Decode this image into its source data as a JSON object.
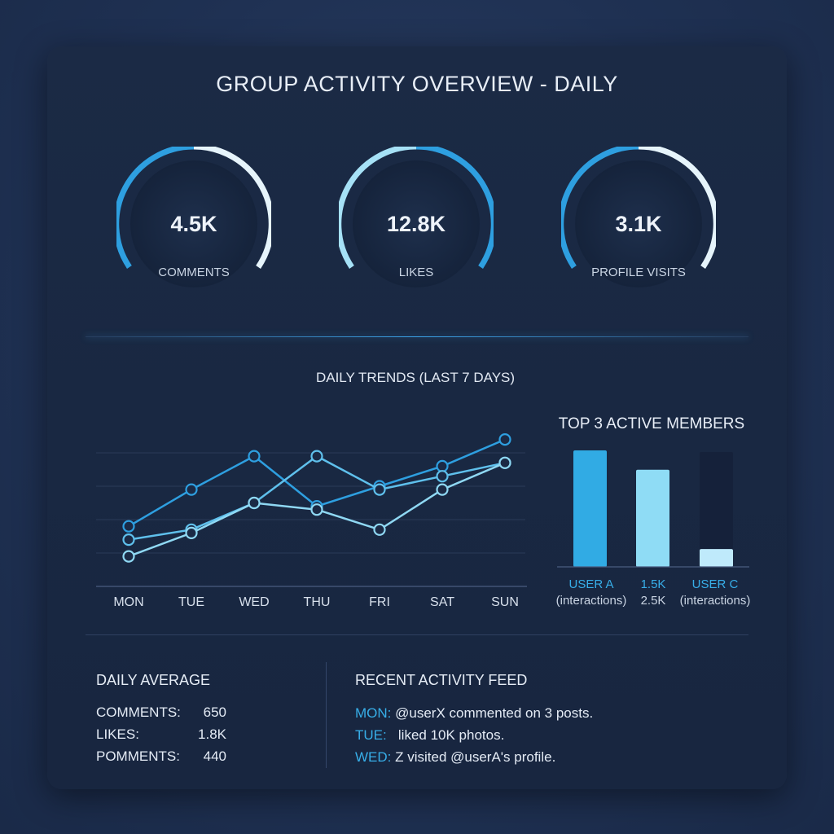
{
  "title": "GROUP ACTIVITY OVERVIEW - DAILY",
  "gauges": [
    {
      "value": "4.5K",
      "label": "COMMENTS"
    },
    {
      "value": "12.8K",
      "label": "LIKES"
    },
    {
      "value": "3.1K",
      "label": "PROFILE VISITS"
    }
  ],
  "chart_data": [
    {
      "type": "line",
      "title": "DAILY TRENDS (LAST 7 DAYS)",
      "categories": [
        "MON",
        "TUE",
        "WED",
        "THU",
        "FRI",
        "SAT",
        "SUN"
      ],
      "ylim": [
        0,
        5
      ],
      "grid": true,
      "series": [
        {
          "color": "#2e9fe0",
          "values": [
            1.8,
            2.9,
            3.9,
            2.4,
            3.0,
            3.6,
            4.4
          ]
        },
        {
          "color": "#5fc0ec",
          "values": [
            1.4,
            1.7,
            2.5,
            3.9,
            2.9,
            3.3,
            3.7
          ]
        },
        {
          "color": "#8fd8f3",
          "values": [
            0.9,
            1.6,
            2.5,
            2.3,
            1.7,
            2.9,
            3.7
          ]
        }
      ]
    },
    {
      "type": "bar",
      "title": "TOP 3 ACTIVE MEMBERS",
      "categories": [
        "USER A",
        "1.5K",
        "USER C"
      ],
      "sublabels": [
        "(interactions)",
        "2.5K",
        "(interactions)"
      ],
      "values": [
        3.6,
        3.0,
        0.55
      ],
      "ylim": [
        0,
        3.8
      ],
      "colors": [
        "#31abe4",
        "#8fdcf5",
        "#bfeafb"
      ]
    }
  ],
  "daily_average": {
    "title": "DAILY AVERAGE",
    "rows": [
      {
        "key": "COMMENTS:",
        "value": "650"
      },
      {
        "key": "LIKES:",
        "value": "1.8K"
      },
      {
        "key": "POMMENTS:",
        "value": "440"
      }
    ]
  },
  "feed": {
    "title": "RECENT ACTIVITY FEED",
    "rows": [
      {
        "day": "MON:",
        "text": " @userX commented on 3 posts."
      },
      {
        "day": "TUE:",
        "text": "   liked 10K photos."
      },
      {
        "day": "WED:",
        "text": " Z visited @userA's profile."
      }
    ]
  },
  "colors": {
    "accent": "#31abe4",
    "accent_light": "#8fdcf5",
    "panel": "#1b2a45"
  }
}
